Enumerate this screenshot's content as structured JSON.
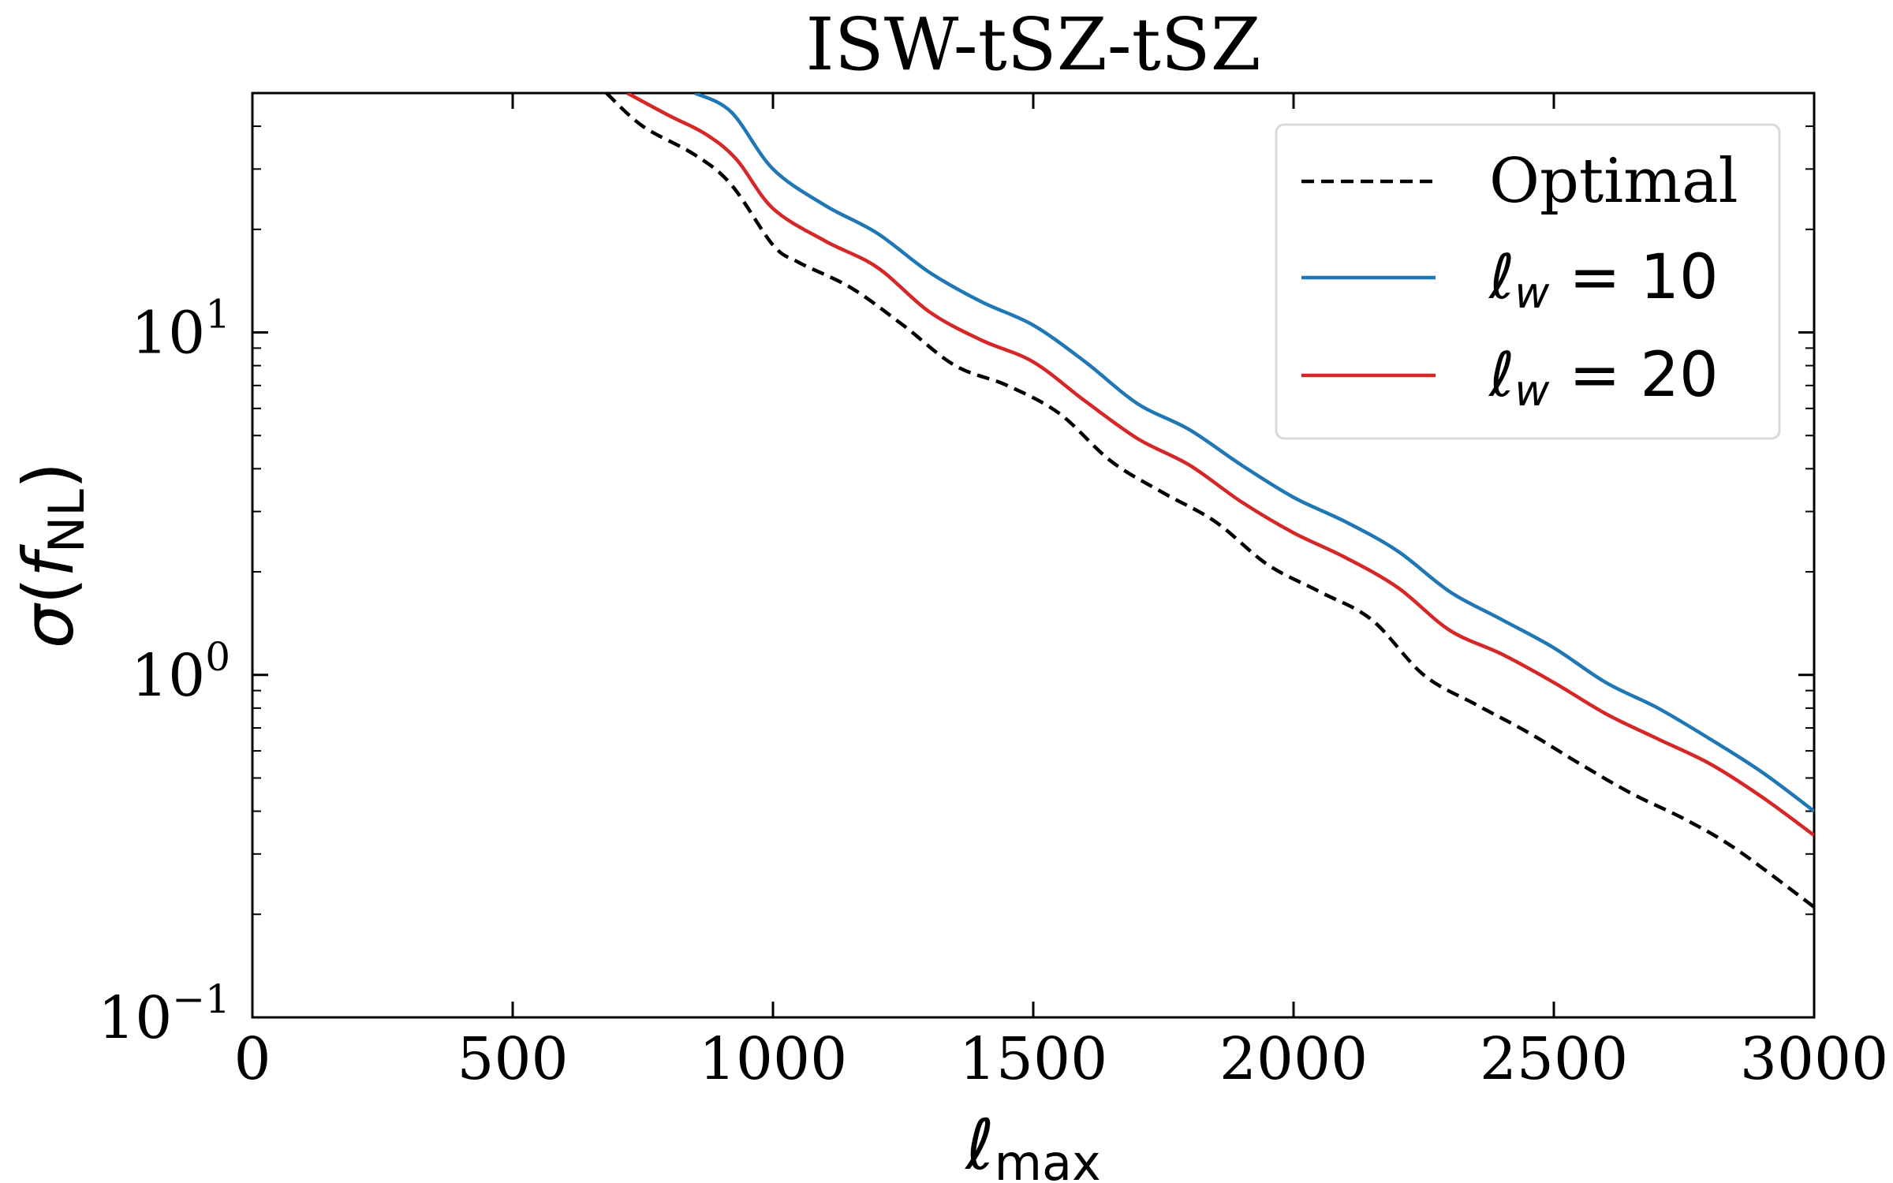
{
  "chart_data": {
    "type": "line",
    "title": "ISW-tSZ-tSZ",
    "xlabel": "ℓmax",
    "ylabel": "σ(fNL)",
    "xlim": [
      0,
      3000
    ],
    "ylim": [
      0.1,
      50
    ],
    "yscale": "log",
    "xticks": [
      0,
      500,
      1000,
      1500,
      2000,
      2500,
      3000
    ],
    "xtick_labels": [
      "0",
      "500",
      "1000",
      "1500",
      "2000",
      "2500",
      "3000"
    ],
    "yticks": [
      0.1,
      1,
      10
    ],
    "ytick_labels": [
      {
        "base": "10",
        "exp": "−1"
      },
      {
        "base": "10",
        "exp": "0"
      },
      {
        "base": "10",
        "exp": "1"
      }
    ],
    "grid": false,
    "legend_position": "top-right",
    "series": [
      {
        "name": "Optimal",
        "color": "#000000",
        "style": "dashed",
        "points": [
          [
            680,
            50
          ],
          [
            750,
            40
          ],
          [
            850,
            33
          ],
          [
            920,
            27
          ],
          [
            1000,
            18
          ],
          [
            1050,
            16
          ],
          [
            1150,
            13.5
          ],
          [
            1250,
            10.5
          ],
          [
            1350,
            8
          ],
          [
            1450,
            7
          ],
          [
            1550,
            5.8
          ],
          [
            1650,
            4.2
          ],
          [
            1750,
            3.4
          ],
          [
            1850,
            2.8
          ],
          [
            1950,
            2.1
          ],
          [
            2050,
            1.75
          ],
          [
            2150,
            1.45
          ],
          [
            2250,
            1.0
          ],
          [
            2350,
            0.82
          ],
          [
            2450,
            0.68
          ],
          [
            2550,
            0.55
          ],
          [
            2650,
            0.45
          ],
          [
            2750,
            0.38
          ],
          [
            2850,
            0.31
          ],
          [
            3000,
            0.21
          ]
        ]
      },
      {
        "name": "ℓw = 10",
        "label_main": "ℓ",
        "label_sub": "w",
        "label_rest": " = 10",
        "color": "#1f77b4",
        "style": "solid",
        "points": [
          [
            850,
            50
          ],
          [
            920,
            44
          ],
          [
            1000,
            30
          ],
          [
            1100,
            23.5
          ],
          [
            1200,
            19.5
          ],
          [
            1300,
            15
          ],
          [
            1400,
            12.3
          ],
          [
            1500,
            10.5
          ],
          [
            1600,
            8.2
          ],
          [
            1700,
            6.2
          ],
          [
            1800,
            5.2
          ],
          [
            1900,
            4.1
          ],
          [
            2000,
            3.3
          ],
          [
            2100,
            2.8
          ],
          [
            2200,
            2.3
          ],
          [
            2300,
            1.75
          ],
          [
            2400,
            1.45
          ],
          [
            2500,
            1.2
          ],
          [
            2600,
            0.95
          ],
          [
            2700,
            0.8
          ],
          [
            2800,
            0.65
          ],
          [
            2900,
            0.52
          ],
          [
            3000,
            0.4
          ]
        ]
      },
      {
        "name": "ℓw = 20",
        "label_main": "ℓ",
        "label_sub": "w",
        "label_rest": " = 20",
        "color": "#d62728",
        "style": "solid",
        "points": [
          [
            720,
            50
          ],
          [
            800,
            43
          ],
          [
            870,
            38
          ],
          [
            930,
            32
          ],
          [
            1000,
            23
          ],
          [
            1100,
            18.5
          ],
          [
            1200,
            15.5
          ],
          [
            1300,
            11.5
          ],
          [
            1400,
            9.5
          ],
          [
            1500,
            8.2
          ],
          [
            1600,
            6.3
          ],
          [
            1700,
            4.9
          ],
          [
            1800,
            4.1
          ],
          [
            1900,
            3.2
          ],
          [
            2000,
            2.6
          ],
          [
            2100,
            2.2
          ],
          [
            2200,
            1.8
          ],
          [
            2300,
            1.35
          ],
          [
            2400,
            1.15
          ],
          [
            2500,
            0.95
          ],
          [
            2600,
            0.77
          ],
          [
            2700,
            0.65
          ],
          [
            2800,
            0.55
          ],
          [
            2900,
            0.44
          ],
          [
            3000,
            0.34
          ]
        ]
      }
    ]
  }
}
